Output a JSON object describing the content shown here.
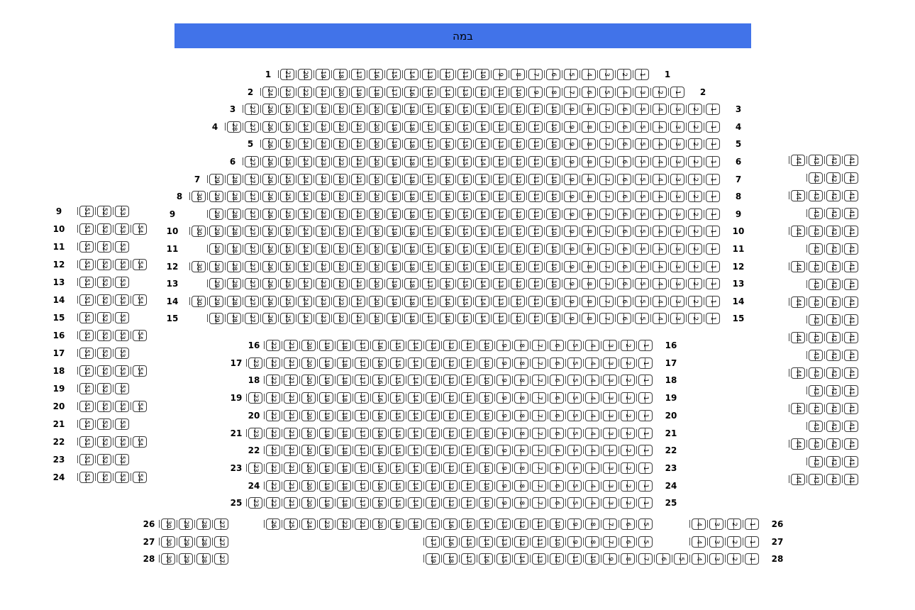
{
  "stage": {
    "label": "במה",
    "color": "#4173e9"
  },
  "seat_map": {
    "center_rows": [
      {
        "row": "1",
        "groups": [
          [
            21,
            20,
            19,
            18,
            17,
            16,
            15,
            14,
            13,
            12,
            11,
            10,
            9,
            8,
            7,
            6,
            5,
            4,
            3,
            2,
            1
          ]
        ]
      },
      {
        "row": "2",
        "groups": [
          [
            24,
            23,
            22,
            21,
            20,
            19,
            18,
            17,
            16,
            15,
            14,
            13,
            12,
            11,
            10,
            9,
            8,
            7,
            6,
            5,
            4,
            3,
            2,
            1
          ]
        ]
      },
      {
        "row": "3",
        "groups": [
          [
            27,
            26,
            25,
            24,
            23,
            22,
            21,
            20,
            19,
            18,
            17,
            16,
            15,
            14,
            13,
            12,
            11,
            10,
            9,
            8,
            7,
            6,
            5,
            4,
            3,
            2,
            1
          ]
        ]
      },
      {
        "row": "4",
        "groups": [
          [
            28,
            27,
            26,
            25,
            24,
            23,
            22,
            21,
            20,
            19,
            18,
            17,
            16,
            15,
            14,
            13,
            12,
            11,
            10,
            9,
            8,
            7,
            6,
            5,
            4,
            3,
            2,
            1
          ]
        ]
      },
      {
        "row": "5",
        "groups": [
          [
            26,
            25,
            24,
            23,
            22,
            21,
            20,
            19,
            18,
            17,
            16,
            15,
            14,
            13,
            12,
            11,
            10,
            9,
            8,
            7,
            6,
            5,
            4,
            3,
            2,
            1
          ]
        ]
      },
      {
        "row": "6",
        "groups": [
          [
            27,
            26,
            25,
            24,
            23,
            22,
            21,
            20,
            19,
            18,
            17,
            16,
            15,
            14,
            13,
            12,
            11,
            10,
            9,
            8,
            7,
            6,
            5,
            4,
            3,
            2,
            1
          ]
        ]
      },
      {
        "row": "7",
        "groups": [
          [
            29,
            28,
            27,
            26,
            25,
            24,
            23,
            22,
            21,
            20,
            19,
            18,
            17,
            16,
            15,
            14,
            13,
            12,
            11,
            10,
            9,
            8,
            7,
            6,
            5,
            4,
            3,
            2,
            1
          ]
        ]
      },
      {
        "row": "8",
        "groups": [
          [
            30,
            29,
            28,
            27,
            26,
            25,
            24,
            23,
            22,
            21,
            20,
            19,
            18,
            17,
            16,
            15,
            14,
            13,
            12,
            11,
            10,
            9,
            8,
            7,
            6,
            5,
            4,
            3,
            2,
            1
          ]
        ]
      },
      {
        "row": "9",
        "groups": [
          [
            29,
            28,
            27,
            26,
            25,
            24,
            23,
            22,
            21,
            20,
            19,
            18,
            17,
            16,
            15,
            14,
            13,
            12,
            11,
            10,
            9,
            8,
            7,
            6,
            5,
            4,
            3,
            2,
            1
          ]
        ]
      },
      {
        "row": "10",
        "groups": [
          [
            30,
            29,
            28,
            27,
            26,
            25,
            24,
            23,
            22,
            21,
            20,
            19,
            18,
            17,
            16,
            15,
            14,
            13,
            12,
            11,
            10,
            9,
            8,
            7,
            6,
            5,
            4,
            3,
            2,
            1
          ]
        ]
      },
      {
        "row": "11",
        "groups": [
          [
            29,
            28,
            27,
            26,
            25,
            24,
            23,
            22,
            21,
            20,
            19,
            18,
            17,
            16,
            15,
            14,
            13,
            12,
            11,
            10,
            9,
            8,
            7,
            6,
            5,
            4,
            3,
            2,
            1
          ]
        ]
      },
      {
        "row": "12",
        "groups": [
          [
            30,
            29,
            28,
            27,
            26,
            25,
            24,
            23,
            22,
            21,
            20,
            19,
            18,
            17,
            16,
            15,
            14,
            13,
            12,
            11,
            10,
            9,
            8,
            7,
            6,
            5,
            4,
            3,
            2,
            1
          ]
        ]
      },
      {
        "row": "13",
        "groups": [
          [
            29,
            28,
            27,
            26,
            25,
            24,
            23,
            22,
            21,
            20,
            19,
            18,
            17,
            16,
            15,
            14,
            13,
            12,
            11,
            10,
            9,
            8,
            7,
            6,
            5,
            4,
            3,
            2,
            1
          ]
        ]
      },
      {
        "row": "14",
        "groups": [
          [
            30,
            29,
            28,
            27,
            26,
            25,
            24,
            23,
            22,
            21,
            20,
            19,
            18,
            17,
            16,
            15,
            14,
            13,
            12,
            11,
            10,
            9,
            8,
            7,
            6,
            5,
            4,
            3,
            2,
            1
          ]
        ]
      },
      {
        "row": "15",
        "groups": [
          [
            29,
            28,
            27,
            26,
            25,
            24,
            23,
            22,
            21,
            20,
            19,
            18,
            17,
            16,
            15,
            14,
            13,
            12,
            11,
            10,
            9,
            8,
            7,
            6,
            5,
            4,
            3,
            2,
            1
          ]
        ]
      },
      {
        "row": "16",
        "groups": [
          [
            22,
            21,
            20,
            19,
            18,
            17,
            16,
            15,
            14,
            13,
            12,
            11,
            10,
            9,
            8,
            7,
            6,
            5,
            4,
            3,
            2,
            1
          ]
        ]
      },
      {
        "row": "17",
        "groups": [
          [
            23,
            22,
            21,
            20,
            19,
            18,
            17,
            16,
            15,
            14,
            13,
            12,
            11,
            10,
            9,
            8,
            7,
            6,
            5,
            4,
            3,
            2,
            1
          ]
        ]
      },
      {
        "row": "18",
        "groups": [
          [
            22,
            21,
            20,
            19,
            18,
            17,
            16,
            15,
            14,
            13,
            12,
            11,
            10,
            9,
            8,
            7,
            6,
            5,
            4,
            3,
            2,
            1
          ]
        ]
      },
      {
        "row": "19",
        "groups": [
          [
            23,
            22,
            21,
            20,
            19,
            18,
            17,
            16,
            15,
            14,
            13,
            12,
            11,
            10,
            9,
            8,
            7,
            6,
            5,
            4,
            3,
            2,
            1
          ]
        ]
      },
      {
        "row": "20",
        "groups": [
          [
            22,
            21,
            20,
            19,
            18,
            17,
            16,
            15,
            14,
            13,
            12,
            11,
            10,
            9,
            8,
            7,
            6,
            5,
            4,
            3,
            2,
            1
          ]
        ]
      },
      {
        "row": "21",
        "groups": [
          [
            23,
            22,
            21,
            20,
            19,
            18,
            17,
            16,
            15,
            14,
            13,
            12,
            11,
            10,
            9,
            8,
            7,
            6,
            5,
            4,
            3,
            2,
            1
          ]
        ]
      },
      {
        "row": "22",
        "groups": [
          [
            22,
            21,
            20,
            19,
            18,
            17,
            16,
            15,
            14,
            13,
            12,
            11,
            10,
            9,
            8,
            7,
            6,
            5,
            4,
            3,
            2,
            1
          ]
        ]
      },
      {
        "row": "23",
        "groups": [
          [
            23,
            22,
            21,
            20,
            19,
            18,
            17,
            16,
            15,
            14,
            13,
            12,
            11,
            10,
            9,
            8,
            7,
            6,
            5,
            4,
            3,
            2,
            1
          ]
        ]
      },
      {
        "row": "24",
        "groups": [
          [
            22,
            21,
            20,
            19,
            18,
            17,
            16,
            15,
            14,
            13,
            12,
            11,
            10,
            9,
            8,
            7,
            6,
            5,
            4,
            3,
            2,
            1
          ]
        ]
      },
      {
        "row": "25",
        "groups": [
          [
            23,
            22,
            21,
            20,
            19,
            18,
            17,
            16,
            15,
            14,
            13,
            12,
            11,
            10,
            9,
            8,
            7,
            6,
            5,
            4,
            3,
            2,
            1
          ]
        ]
      },
      {
        "row": "26",
        "groups": [
          [
            30,
            29,
            28,
            27
          ],
          [
            26,
            25,
            24,
            23,
            22,
            21,
            20,
            19,
            18,
            17,
            16,
            15,
            14,
            13,
            12,
            11,
            10,
            9,
            8,
            7,
            6,
            5
          ],
          [
            4,
            3,
            2,
            1
          ]
        ]
      },
      {
        "row": "27",
        "groups": [
          [
            30,
            29,
            28,
            27
          ],
          [
            17,
            16,
            15,
            14,
            13,
            12,
            11,
            10,
            9,
            8,
            7,
            6,
            5
          ],
          [
            4,
            3,
            2,
            1
          ]
        ]
      },
      {
        "row": "28",
        "groups": [
          [
            30,
            29,
            28,
            27
          ],
          [
            19,
            18,
            17,
            16,
            15,
            14,
            13,
            12,
            11,
            10,
            9,
            8,
            7,
            6,
            5,
            4,
            3,
            2,
            1
          ]
        ]
      }
    ],
    "left_section": [
      {
        "row": "9",
        "seats": [
          51,
          52,
          53
        ]
      },
      {
        "row": "10",
        "seats": [
          51,
          52,
          53,
          54
        ]
      },
      {
        "row": "11",
        "seats": [
          51,
          52,
          53
        ]
      },
      {
        "row": "12",
        "seats": [
          51,
          52,
          53,
          54
        ]
      },
      {
        "row": "13",
        "seats": [
          51,
          52,
          53
        ]
      },
      {
        "row": "14",
        "seats": [
          51,
          52,
          53,
          54
        ]
      },
      {
        "row": "15",
        "seats": [
          51,
          52,
          53
        ]
      },
      {
        "row": "16",
        "seats": [
          51,
          52,
          53,
          54
        ]
      },
      {
        "row": "17",
        "seats": [
          51,
          52,
          53
        ]
      },
      {
        "row": "18",
        "seats": [
          51,
          52,
          53,
          54
        ]
      },
      {
        "row": "19",
        "seats": [
          51,
          52,
          53
        ]
      },
      {
        "row": "20",
        "seats": [
          51,
          52,
          53,
          54
        ]
      },
      {
        "row": "21",
        "seats": [
          51,
          52,
          53
        ]
      },
      {
        "row": "22",
        "seats": [
          51,
          52,
          53,
          54
        ]
      },
      {
        "row": "23",
        "seats": [
          51,
          52,
          53
        ]
      },
      {
        "row": "24",
        "seats": [
          51,
          52,
          53,
          54
        ]
      }
    ],
    "right_section": [
      {
        "row": "6",
        "seats": [
          44,
          43,
          42,
          41
        ]
      },
      {
        "row": "7",
        "seats": [
          43,
          42,
          41
        ]
      },
      {
        "row": "8",
        "seats": [
          44,
          43,
          42,
          41
        ]
      },
      {
        "row": "9",
        "seats": [
          43,
          42,
          41
        ]
      },
      {
        "row": "10",
        "seats": [
          44,
          43,
          42,
          41
        ]
      },
      {
        "row": "11",
        "seats": [
          43,
          42,
          41
        ]
      },
      {
        "row": "12",
        "seats": [
          44,
          43,
          42,
          41
        ]
      },
      {
        "row": "13",
        "seats": [
          43,
          42,
          41
        ]
      },
      {
        "row": "14",
        "seats": [
          44,
          43,
          42,
          41
        ]
      },
      {
        "row": "15",
        "seats": [
          43,
          42,
          41
        ]
      },
      {
        "row": "16",
        "seats": [
          44,
          43,
          42,
          41
        ]
      },
      {
        "row": "17",
        "seats": [
          43,
          42,
          41
        ]
      },
      {
        "row": "18",
        "seats": [
          44,
          43,
          42,
          41
        ]
      },
      {
        "row": "19",
        "seats": [
          43,
          42,
          41
        ]
      },
      {
        "row": "20",
        "seats": [
          44,
          43,
          42,
          41
        ]
      },
      {
        "row": "21",
        "seats": [
          43,
          42,
          41
        ]
      },
      {
        "row": "22",
        "seats": [
          44,
          43,
          42,
          41
        ]
      },
      {
        "row": "23",
        "seats": [
          43,
          42,
          41
        ]
      },
      {
        "row": "24",
        "seats": [
          44,
          43,
          42,
          41
        ]
      }
    ]
  }
}
